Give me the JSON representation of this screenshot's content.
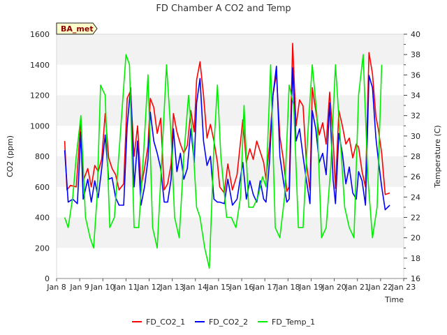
{
  "colors": {
    "co2_1": "#ff0000",
    "co2_2": "#0000ff",
    "temp_1": "#00ee00",
    "band": "#f2f2f2",
    "badge_bg": "#ffffcc"
  },
  "chart_data": {
    "type": "line",
    "title": "FD Chamber A CO2 and Temp",
    "site_badge": "BA_met",
    "xlabel": "Time",
    "ylabel": "CO2 (ppm)",
    "y2label": "Temperature (C)",
    "x_ticks": [
      "Jan 8",
      "Jan 9",
      "Jan 10",
      "Jan 11",
      "Jan 12",
      "Jan 13",
      "Jan 14",
      "Jan 15",
      "Jan 16",
      "Jan 17",
      "Jan 18",
      "Jan 19",
      "Jan 20",
      "Jan 21",
      "Jan 22",
      "Jan 23"
    ],
    "xlim": [
      8,
      23
    ],
    "ylim": [
      0,
      1600
    ],
    "y_ticks": [
      0,
      200,
      400,
      600,
      800,
      1000,
      1200,
      1400,
      1600
    ],
    "y2lim": [
      16,
      40
    ],
    "y2_ticks": [
      16,
      18,
      20,
      22,
      24,
      26,
      28,
      30,
      32,
      34,
      36,
      38,
      40
    ],
    "grid": "horizontal bands",
    "legend_position": "bottom",
    "series": [
      {
        "name": "FD_CO2_1",
        "axis": "left",
        "x": [
          8.35,
          8.45,
          8.6,
          8.85,
          9.05,
          9.15,
          9.35,
          9.5,
          9.65,
          9.8,
          9.95,
          10.1,
          10.25,
          10.4,
          10.55,
          10.7,
          10.9,
          11.05,
          11.2,
          11.35,
          11.5,
          11.65,
          11.8,
          11.95,
          12.05,
          12.2,
          12.35,
          12.5,
          12.65,
          12.8,
          12.95,
          13.05,
          13.2,
          13.35,
          13.5,
          13.65,
          13.8,
          13.95,
          14.05,
          14.2,
          14.35,
          14.5,
          14.65,
          14.8,
          14.95,
          15.05,
          15.25,
          15.4,
          15.6,
          15.8,
          16.05,
          16.2,
          16.35,
          16.5,
          16.65,
          16.8,
          16.95,
          17.05,
          17.2,
          17.35,
          17.5,
          17.65,
          17.8,
          17.95,
          18.05,
          18.2,
          18.35,
          18.5,
          18.65,
          18.8,
          18.95,
          19.05,
          19.2,
          19.35,
          19.5,
          19.65,
          19.8,
          19.95,
          20.05,
          20.2,
          20.35,
          20.5,
          20.65,
          20.8,
          20.95,
          21.05,
          21.2,
          21.35,
          21.5,
          21.65,
          21.8,
          21.9,
          22.05,
          22.2,
          22.4
        ],
        "values": [
          900,
          580,
          610,
          600,
          1050,
          640,
          720,
          600,
          740,
          700,
          780,
          1080,
          790,
          720,
          680,
          580,
          620,
          1180,
          1230,
          800,
          1000,
          600,
          720,
          870,
          1180,
          1120,
          950,
          1050,
          580,
          620,
          750,
          1080,
          960,
          880,
          820,
          870,
          1100,
          960,
          1300,
          1420,
          1200,
          920,
          1010,
          900,
          760,
          600,
          560,
          750,
          580,
          680,
          1040,
          760,
          850,
          780,
          900,
          830,
          760,
          650,
          870,
          1200,
          1340,
          930,
          780,
          570,
          600,
          1540,
          1000,
          1170,
          1130,
          750,
          580,
          1250,
          1100,
          940,
          1020,
          880,
          1220,
          920,
          590,
          1100,
          1000,
          880,
          920,
          790,
          880,
          860,
          700,
          600,
          1480,
          1340,
          1060,
          980,
          820,
          550,
          560
        ]
      },
      {
        "name": "FD_CO2_2",
        "axis": "left",
        "x": [
          8.35,
          8.5,
          8.7,
          8.9,
          9.05,
          9.15,
          9.35,
          9.5,
          9.65,
          9.8,
          9.95,
          10.1,
          10.25,
          10.4,
          10.55,
          10.7,
          10.9,
          11.05,
          11.2,
          11.35,
          11.5,
          11.65,
          11.8,
          11.95,
          12.05,
          12.2,
          12.35,
          12.5,
          12.65,
          12.8,
          12.95,
          13.05,
          13.2,
          13.35,
          13.5,
          13.65,
          13.8,
          13.95,
          14.05,
          14.2,
          14.35,
          14.5,
          14.65,
          14.8,
          14.95,
          15.05,
          15.25,
          15.4,
          15.6,
          15.8,
          16.05,
          16.2,
          16.35,
          16.5,
          16.65,
          16.8,
          16.95,
          17.05,
          17.2,
          17.35,
          17.5,
          17.65,
          17.8,
          17.95,
          18.05,
          18.2,
          18.35,
          18.5,
          18.65,
          18.8,
          18.95,
          19.05,
          19.2,
          19.35,
          19.5,
          19.65,
          19.8,
          19.95,
          20.05,
          20.2,
          20.35,
          20.5,
          20.65,
          20.8,
          20.95,
          21.05,
          21.2,
          21.35,
          21.5,
          21.65,
          21.8,
          21.9,
          22.05,
          22.2,
          22.4
        ],
        "values": [
          840,
          500,
          520,
          490,
          960,
          520,
          650,
          500,
          640,
          530,
          720,
          940,
          650,
          660,
          530,
          480,
          480,
          1000,
          1250,
          600,
          900,
          480,
          600,
          780,
          1090,
          900,
          820,
          720,
          500,
          500,
          650,
          980,
          700,
          820,
          650,
          720,
          980,
          760,
          1150,
          1310,
          900,
          740,
          800,
          520,
          500,
          500,
          490,
          650,
          480,
          520,
          760,
          520,
          640,
          550,
          500,
          640,
          520,
          500,
          760,
          1200,
          1390,
          800,
          640,
          500,
          520,
          1380,
          900,
          980,
          800,
          640,
          490,
          1100,
          980,
          760,
          820,
          680,
          1150,
          650,
          490,
          950,
          820,
          620,
          730,
          560,
          520,
          700,
          640,
          480,
          1330,
          1250,
          920,
          780,
          600,
          450,
          480
        ]
      },
      {
        "name": "FD_Temp_1",
        "axis": "right",
        "x": [
          8.35,
          8.5,
          8.7,
          8.85,
          9.05,
          9.25,
          9.45,
          9.6,
          9.75,
          9.9,
          10.1,
          10.3,
          10.5,
          10.75,
          11.0,
          11.15,
          11.35,
          11.55,
          11.75,
          11.95,
          12.15,
          12.35,
          12.55,
          12.75,
          12.95,
          13.1,
          13.3,
          13.5,
          13.7,
          13.9,
          14.05,
          14.2,
          14.4,
          14.6,
          14.8,
          14.95,
          15.1,
          15.35,
          15.55,
          15.75,
          15.95,
          16.1,
          16.3,
          16.5,
          16.7,
          16.9,
          17.05,
          17.25,
          17.45,
          17.65,
          17.85,
          18.05,
          18.25,
          18.45,
          18.65,
          18.85,
          19.05,
          19.25,
          19.45,
          19.65,
          19.85,
          20.05,
          20.25,
          20.45,
          20.65,
          20.85,
          21.05,
          21.25,
          21.45,
          21.65,
          21.85,
          22.05
        ],
        "values": [
          22,
          21,
          24,
          28,
          32,
          22,
          20,
          19,
          24,
          35,
          34,
          21,
          22,
          30,
          38,
          37,
          21,
          21,
          28,
          36,
          21,
          19,
          28,
          37,
          30,
          22,
          20,
          28,
          34,
          29,
          23,
          22,
          19,
          17,
          29,
          35,
          28,
          22,
          22,
          21,
          24,
          33,
          23,
          23,
          24,
          26,
          25,
          37,
          21,
          20,
          24,
          35,
          33,
          21,
          21,
          30,
          37,
          32,
          20,
          21,
          27,
          37,
          30,
          23,
          21,
          20,
          34,
          38,
          26,
          20,
          23,
          37
        ]
      }
    ]
  }
}
